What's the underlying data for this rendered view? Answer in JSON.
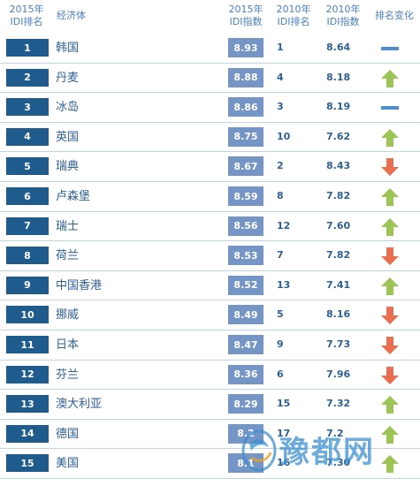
{
  "header": {
    "rank2015_line1": "2015年",
    "rank2015_line2": "IDI排名",
    "economy": "经济体",
    "idi2015_line1": "2015年",
    "idi2015_line2": "IDI指数",
    "rank2010_line1": "2010年",
    "rank2010_line2": "IDI排名",
    "idi2010_line1": "2010年",
    "idi2010_line2": "IDI指数",
    "change": "排名变化"
  },
  "chart_data": {
    "type": "table",
    "columns": [
      "2015年IDI排名",
      "经济体",
      "2015年IDI指数",
      "2010年IDI排名",
      "2010年IDI指数",
      "排名变化"
    ],
    "rows": [
      {
        "rank2015": "1",
        "economy": "韩国",
        "idi2015": "8.93",
        "rank2010": "1",
        "idi2010": "8.64",
        "change": "same"
      },
      {
        "rank2015": "2",
        "economy": "丹麦",
        "idi2015": "8.88",
        "rank2010": "4",
        "idi2010": "8.18",
        "change": "up"
      },
      {
        "rank2015": "3",
        "economy": "冰岛",
        "idi2015": "8.86",
        "rank2010": "3",
        "idi2010": "8.19",
        "change": "same"
      },
      {
        "rank2015": "4",
        "economy": "英国",
        "idi2015": "8.75",
        "rank2010": "10",
        "idi2010": "7.62",
        "change": "up"
      },
      {
        "rank2015": "5",
        "economy": "瑞典",
        "idi2015": "8.67",
        "rank2010": "2",
        "idi2010": "8.43",
        "change": "down"
      },
      {
        "rank2015": "6",
        "economy": "卢森堡",
        "idi2015": "8.59",
        "rank2010": "8",
        "idi2010": "7.82",
        "change": "up"
      },
      {
        "rank2015": "7",
        "economy": "瑞士",
        "idi2015": "8.56",
        "rank2010": "12",
        "idi2010": "7.60",
        "change": "up"
      },
      {
        "rank2015": "8",
        "economy": "荷兰",
        "idi2015": "8.53",
        "rank2010": "7",
        "idi2010": "7.82",
        "change": "down"
      },
      {
        "rank2015": "9",
        "economy": "中国香港",
        "idi2015": "8.52",
        "rank2010": "13",
        "idi2010": "7.41",
        "change": "up"
      },
      {
        "rank2015": "10",
        "economy": "挪威",
        "idi2015": "8.49",
        "rank2010": "5",
        "idi2010": "8.16",
        "change": "down"
      },
      {
        "rank2015": "11",
        "economy": "日本",
        "idi2015": "8.47",
        "rank2010": "9",
        "idi2010": "7.73",
        "change": "down"
      },
      {
        "rank2015": "12",
        "economy": "芬兰",
        "idi2015": "8.36",
        "rank2010": "6",
        "idi2010": "7.96",
        "change": "down"
      },
      {
        "rank2015": "13",
        "economy": "澳大利亚",
        "idi2015": "8.29",
        "rank2010": "15",
        "idi2010": "7.32",
        "change": "up"
      },
      {
        "rank2015": "14",
        "economy": "德国",
        "idi2015": "8.2",
        "rank2010": "17",
        "idi2010": "7.2",
        "change": "up"
      },
      {
        "rank2015": "15",
        "economy": "美国",
        "idi2015": "8.1",
        "rank2010": "16",
        "idi2010": "7.30",
        "change": "up"
      }
    ]
  },
  "colors": {
    "rank_box": "#1f5c8d",
    "idi_box": "#7595c6",
    "text": "#2d5f93",
    "header": "#4a7fbf",
    "up": "#9cc556",
    "down": "#ec6e51",
    "same": "#4f8fd1",
    "row_line": "#bcd6e6"
  },
  "icons": {
    "up": "arrow-up-icon",
    "down": "arrow-down-icon",
    "same": "dash-icon"
  },
  "watermark": {
    "text": "豫都网"
  }
}
